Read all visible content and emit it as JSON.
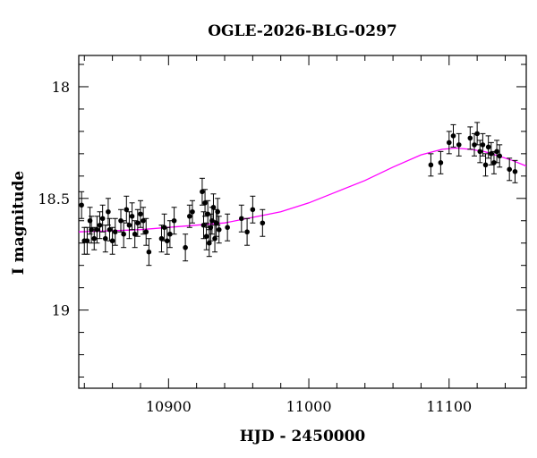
{
  "chart_data": {
    "type": "scatter",
    "title": "OGLE-2026-BLG-0297",
    "xlabel": "HJD - 2450000",
    "ylabel": "I magnitude",
    "xlim": [
      10836,
      11155
    ],
    "ylim": [
      19.35,
      17.86
    ],
    "y_inverted": true,
    "xticks_major": [
      10900,
      11000,
      11100
    ],
    "xtick_labels": [
      "10900",
      "11000",
      "11100"
    ],
    "xticks_minor_step": 20,
    "yticks_major": [
      18,
      18.5,
      19
    ],
    "ytick_labels": [
      "18",
      "18.5",
      "19"
    ],
    "yticks_minor_step": 0.1,
    "grid": false,
    "colors": {
      "points": "#000000",
      "model": "#ff00ff"
    },
    "series": [
      {
        "type": "points_with_errorbars",
        "points": [
          [
            10838,
            18.53,
            0.06
          ],
          [
            10840,
            18.69,
            0.06
          ],
          [
            10842,
            18.69,
            0.06
          ],
          [
            10844,
            18.6,
            0.06
          ],
          [
            10845,
            18.64,
            0.06
          ],
          [
            10847,
            18.68,
            0.05
          ],
          [
            10849,
            18.64,
            0.06
          ],
          [
            10851,
            18.62,
            0.06
          ],
          [
            10853,
            18.59,
            0.06
          ],
          [
            10855,
            18.68,
            0.06
          ],
          [
            10857,
            18.56,
            0.06
          ],
          [
            10858,
            18.64,
            0.05
          ],
          [
            10860,
            18.69,
            0.06
          ],
          [
            10862,
            18.65,
            0.06
          ],
          [
            10866,
            18.6,
            0.05
          ],
          [
            10868,
            18.66,
            0.06
          ],
          [
            10870,
            18.55,
            0.06
          ],
          [
            10872,
            18.62,
            0.06
          ],
          [
            10874,
            18.58,
            0.06
          ],
          [
            10876,
            18.66,
            0.06
          ],
          [
            10878,
            18.61,
            0.06
          ],
          [
            10880,
            18.57,
            0.06
          ],
          [
            10882,
            18.6,
            0.06
          ],
          [
            10884,
            18.65,
            0.06
          ],
          [
            10886,
            18.74,
            0.06
          ],
          [
            10895,
            18.68,
            0.06
          ],
          [
            10897,
            18.63,
            0.06
          ],
          [
            10899,
            18.69,
            0.06
          ],
          [
            10901,
            18.66,
            0.06
          ],
          [
            10904,
            18.6,
            0.06
          ],
          [
            10912,
            18.72,
            0.06
          ],
          [
            10915,
            18.58,
            0.05
          ],
          [
            10917,
            18.56,
            0.05
          ],
          [
            10924,
            18.47,
            0.06
          ],
          [
            10925,
            18.62,
            0.06
          ],
          [
            10926,
            18.52,
            0.06
          ],
          [
            10927,
            18.67,
            0.06
          ],
          [
            10928,
            18.57,
            0.06
          ],
          [
            10929,
            18.7,
            0.06
          ],
          [
            10930,
            18.63,
            0.06
          ],
          [
            10931,
            18.6,
            0.06
          ],
          [
            10932,
            18.54,
            0.06
          ],
          [
            10933,
            18.68,
            0.06
          ],
          [
            10934,
            18.61,
            0.06
          ],
          [
            10935,
            18.56,
            0.06
          ],
          [
            10936,
            18.64,
            0.06
          ],
          [
            10942,
            18.63,
            0.06
          ],
          [
            10952,
            18.59,
            0.06
          ],
          [
            10956,
            18.65,
            0.06
          ],
          [
            10960,
            18.55,
            0.06
          ],
          [
            10967,
            18.61,
            0.06
          ],
          [
            11087,
            18.35,
            0.05
          ],
          [
            11094,
            18.34,
            0.05
          ],
          [
            11100,
            18.25,
            0.05
          ],
          [
            11103,
            18.22,
            0.05
          ],
          [
            11107,
            18.26,
            0.05
          ],
          [
            11115,
            18.23,
            0.05
          ],
          [
            11118,
            18.26,
            0.05
          ],
          [
            11120,
            18.21,
            0.05
          ],
          [
            11122,
            18.29,
            0.05
          ],
          [
            11124,
            18.26,
            0.05
          ],
          [
            11126,
            18.35,
            0.05
          ],
          [
            11128,
            18.27,
            0.05
          ],
          [
            11130,
            18.3,
            0.05
          ],
          [
            11132,
            18.34,
            0.05
          ],
          [
            11134,
            18.29,
            0.05
          ],
          [
            11136,
            18.31,
            0.05
          ],
          [
            11143,
            18.37,
            0.05
          ],
          [
            11147,
            18.38,
            0.05
          ]
        ]
      },
      {
        "type": "model_curve",
        "points": [
          [
            10836,
            18.65
          ],
          [
            10860,
            18.645
          ],
          [
            10880,
            18.64
          ],
          [
            10900,
            18.63
          ],
          [
            10920,
            18.62
          ],
          [
            10940,
            18.61
          ],
          [
            10960,
            18.585
          ],
          [
            10980,
            18.56
          ],
          [
            11000,
            18.52
          ],
          [
            11020,
            18.47
          ],
          [
            11040,
            18.42
          ],
          [
            11060,
            18.36
          ],
          [
            11080,
            18.305
          ],
          [
            11095,
            18.28
          ],
          [
            11105,
            18.275
          ],
          [
            11115,
            18.28
          ],
          [
            11125,
            18.29
          ],
          [
            11135,
            18.31
          ],
          [
            11145,
            18.33
          ],
          [
            11155,
            18.355
          ]
        ]
      }
    ]
  }
}
